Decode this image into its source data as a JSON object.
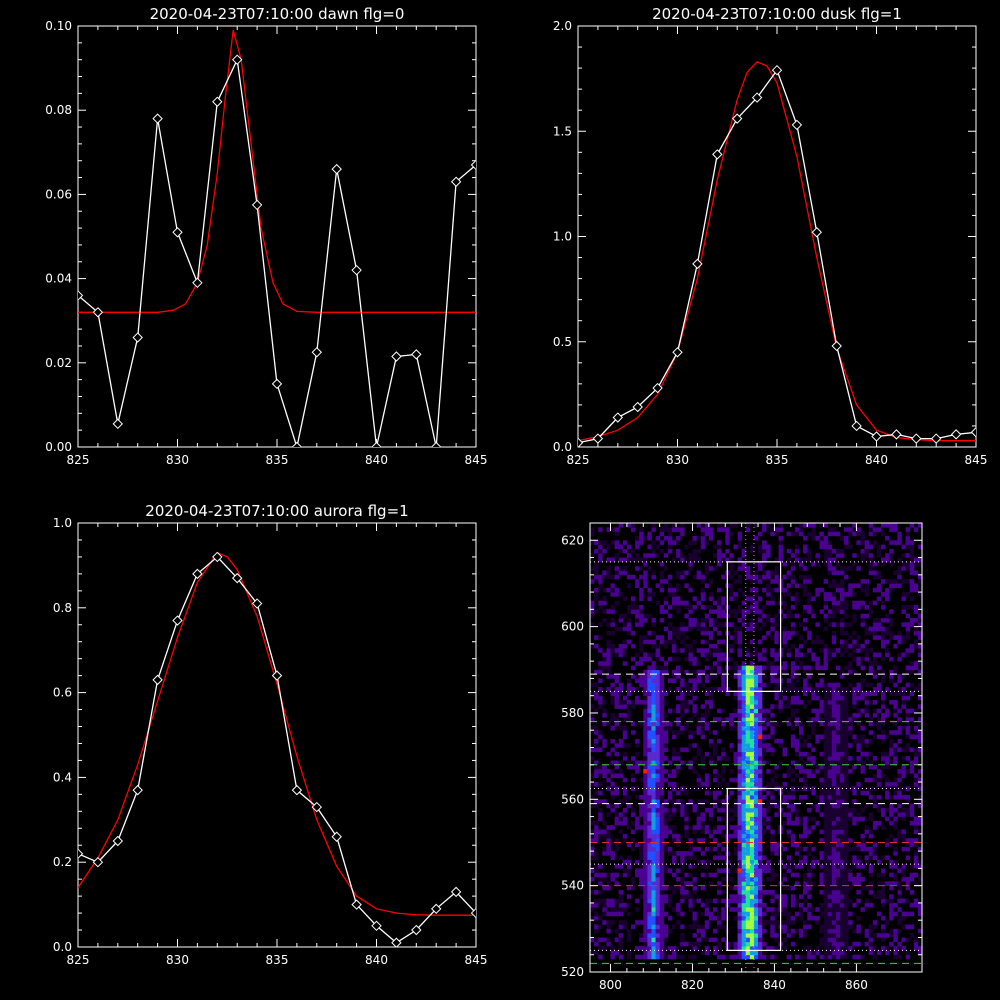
{
  "chart_data": [
    {
      "type": "line",
      "title": "2020-04-23T07:10:00 dawn flg=0",
      "xlim": [
        825,
        845
      ],
      "ylim": [
        0,
        0.1
      ],
      "xticks": [
        "825",
        "830",
        "835",
        "840",
        "845"
      ],
      "yticks": [
        "0.00",
        "0.02",
        "0.04",
        "0.06",
        "0.08",
        "0.10"
      ],
      "series": [
        {
          "color": "#ffffff",
          "markers": "diamond",
          "x": [
            825,
            826,
            827,
            828,
            829,
            830,
            831,
            832,
            833,
            834,
            835,
            836,
            837,
            838,
            839,
            840,
            841,
            842,
            843,
            844,
            845
          ],
          "y": [
            0.036,
            0.032,
            0.0055,
            0.026,
            0.078,
            0.051,
            0.039,
            0.082,
            0.092,
            0.0575,
            0.015,
            0.0,
            0.0225,
            0.066,
            0.042,
            0.0,
            0.0215,
            0.022,
            0.0,
            0.063,
            0.067
          ]
        },
        {
          "color": "#ff0000",
          "kind": "gaussian_fit",
          "x": [
            825,
            829,
            829.8,
            830.4,
            831,
            831.5,
            832,
            832.4,
            832.8,
            833.2,
            833.7,
            834.2,
            834.8,
            835.3,
            836,
            837,
            845
          ],
          "y": [
            0.032,
            0.032,
            0.0325,
            0.034,
            0.039,
            0.048,
            0.065,
            0.083,
            0.099,
            0.092,
            0.072,
            0.052,
            0.039,
            0.034,
            0.0322,
            0.032,
            0.032
          ]
        }
      ]
    },
    {
      "type": "line",
      "title": "2020-04-23T07:10:00 dusk flg=1",
      "xlim": [
        825,
        845
      ],
      "ylim": [
        0,
        2.0
      ],
      "xticks": [
        "825",
        "830",
        "835",
        "840",
        "845"
      ],
      "yticks": [
        "0.0",
        "0.5",
        "1.0",
        "1.5",
        "2.0"
      ],
      "series": [
        {
          "color": "#ffffff",
          "markers": "diamond",
          "x": [
            825,
            826,
            827,
            828,
            829,
            830,
            831,
            832,
            833,
            834,
            835,
            836,
            837,
            838,
            839,
            840,
            841,
            842,
            843,
            844,
            845
          ],
          "y": [
            0.02,
            0.04,
            0.14,
            0.19,
            0.28,
            0.45,
            0.87,
            1.39,
            1.56,
            1.66,
            1.79,
            1.53,
            1.02,
            0.48,
            0.1,
            0.05,
            0.06,
            0.04,
            0.04,
            0.06,
            0.07
          ]
        },
        {
          "color": "#ff0000",
          "kind": "gaussian_fit",
          "x": [
            825,
            826,
            827,
            828,
            829,
            830,
            831,
            832,
            833,
            833.5,
            834,
            834.5,
            835,
            836,
            837,
            838,
            839,
            840,
            841,
            842,
            843,
            845
          ],
          "y": [
            0.03,
            0.05,
            0.08,
            0.14,
            0.25,
            0.45,
            0.8,
            1.27,
            1.65,
            1.78,
            1.83,
            1.81,
            1.73,
            1.38,
            0.9,
            0.47,
            0.2,
            0.08,
            0.045,
            0.035,
            0.03,
            0.03
          ]
        }
      ]
    },
    {
      "type": "line",
      "title": "2020-04-23T07:10:00 aurora flg=1",
      "xlim": [
        825,
        845
      ],
      "ylim": [
        0,
        1.0
      ],
      "xticks": [
        "825",
        "830",
        "835",
        "840",
        "845"
      ],
      "yticks": [
        "0.0",
        "0.2",
        "0.4",
        "0.6",
        "0.8",
        "1.0"
      ],
      "series": [
        {
          "color": "#ffffff",
          "markers": "diamond",
          "x": [
            825,
            826,
            827,
            828,
            829,
            830,
            831,
            832,
            833,
            834,
            835,
            836,
            837,
            838,
            839,
            840,
            841,
            842,
            843,
            844,
            845
          ],
          "y": [
            0.22,
            0.2,
            0.25,
            0.37,
            0.63,
            0.77,
            0.88,
            0.92,
            0.87,
            0.81,
            0.64,
            0.37,
            0.33,
            0.26,
            0.1,
            0.05,
            0.01,
            0.04,
            0.09,
            0.13,
            0.08
          ]
        },
        {
          "color": "#ff0000",
          "kind": "gaussian_fit",
          "x": [
            825,
            826,
            827,
            828,
            829,
            830,
            831,
            832,
            832.5,
            833,
            834,
            835,
            836,
            837,
            838,
            839,
            840,
            841,
            842,
            843,
            845
          ],
          "y": [
            0.14,
            0.21,
            0.3,
            0.43,
            0.58,
            0.73,
            0.86,
            0.93,
            0.92,
            0.89,
            0.78,
            0.62,
            0.45,
            0.3,
            0.19,
            0.12,
            0.09,
            0.08,
            0.076,
            0.075,
            0.075
          ]
        }
      ]
    },
    {
      "type": "heatmap",
      "title": "",
      "xlim": [
        795,
        876
      ],
      "ylim": [
        520,
        624
      ],
      "xticks": [
        "800",
        "820",
        "840",
        "860"
      ],
      "yticks": [
        "520",
        "540",
        "560",
        "580",
        "600",
        "620"
      ],
      "color_scale": [
        "#1a0030",
        "#4a0090",
        "#5a2ad0",
        "#2050ff",
        "#10a0e0",
        "#20e0a0",
        "#a0ff40",
        "#ff2000"
      ],
      "emission_columns": [
        {
          "center": 810.5,
          "halfwidth": 2.5,
          "ymin": 523,
          "ymax": 589,
          "peak": 0.55
        },
        {
          "center": 834,
          "halfwidth": 3,
          "ymin": 523,
          "ymax": 590,
          "peak": 0.95
        },
        {
          "center": 855,
          "halfwidth": 3,
          "ymin": 523,
          "ymax": 585,
          "peak": 0.2
        }
      ],
      "hot_pixels": [
        {
          "x": 836,
          "y": 574
        },
        {
          "x": 808,
          "y": 566
        },
        {
          "x": 836,
          "y": 559
        },
        {
          "x": 831,
          "y": 543
        }
      ],
      "boxes": [
        {
          "x0": 828.5,
          "x1": 841.5,
          "y0": 585,
          "y1": 615
        },
        {
          "x0": 828.5,
          "x1": 841.5,
          "y0": 525,
          "y1": 562.5
        }
      ],
      "hlines": [
        {
          "y": 615,
          "style": "dotted",
          "color": "#ffffff"
        },
        {
          "y": 589,
          "style": "dashed",
          "color": "#ffffff"
        },
        {
          "y": 585,
          "style": "dotted",
          "color": "#ffffff"
        },
        {
          "y": 578,
          "style": "dashed",
          "color": "#40d040"
        },
        {
          "y": 568,
          "style": "dashed",
          "color": "#40d040"
        },
        {
          "y": 562.5,
          "style": "dotted",
          "color": "#ffffff"
        },
        {
          "y": 559,
          "style": "dashed",
          "color": "#ffffff"
        },
        {
          "y": 550,
          "style": "dashed",
          "color": "#e03030"
        },
        {
          "y": 545,
          "style": "dotted",
          "color": "#ffffff"
        },
        {
          "y": 540,
          "style": "dashed",
          "color": "#e03030"
        },
        {
          "y": 525,
          "style": "dotted",
          "color": "#ffffff"
        },
        {
          "y": 522,
          "style": "dashed",
          "color": "#40d040"
        }
      ],
      "vlines": [
        {
          "x": 833,
          "style": "dotted",
          "color": "#ff60ff"
        },
        {
          "x": 835,
          "style": "dotted",
          "color": "#ff60ff"
        }
      ]
    }
  ]
}
